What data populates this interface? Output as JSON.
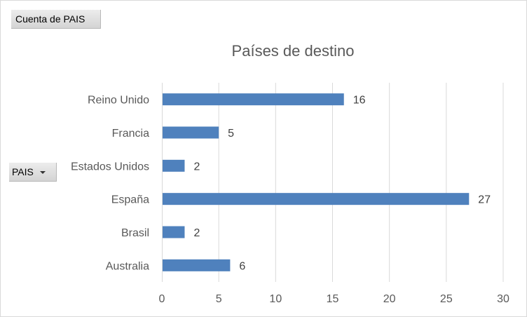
{
  "pivot": {
    "value_field": "Cuenta de PAIS",
    "axis_field": "PAIS"
  },
  "chart_data": {
    "type": "bar",
    "orientation": "horizontal",
    "title": "Países de destino",
    "categories": [
      "Reino Unido",
      "Francia",
      "Estados Unidos",
      "España",
      "Brasil",
      "Australia"
    ],
    "values": [
      16,
      5,
      2,
      27,
      2,
      6
    ],
    "xlim": [
      0,
      30
    ],
    "xticks": [
      0,
      5,
      10,
      15,
      20,
      25,
      30
    ],
    "grid": "vertical",
    "data_labels": true,
    "colors": {
      "bar": "#4f81bd",
      "grid": "#d9d9d9",
      "label": "#595959",
      "value_label": "#404040"
    }
  }
}
